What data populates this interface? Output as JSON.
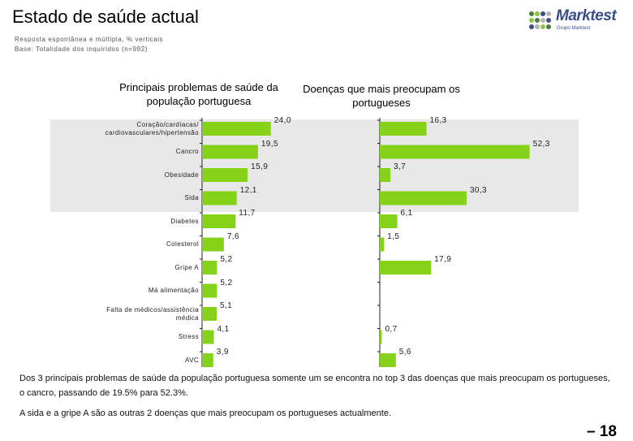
{
  "header": {
    "title": "Estado de saúde actual",
    "subtitle1": "Resposta espontânea e múltipla, % verticais",
    "subtitle2": "Base: Totalidade dos inquiridos (n=992)"
  },
  "logo": {
    "name": "Marktest",
    "tagline": "Grupo Marktest",
    "dot_colors": [
      "#4a7c3a",
      "#8ec63f",
      "#3a4e8a",
      "#b5b5b5"
    ]
  },
  "colors": {
    "bar": "#86d119",
    "highlight_band": "#e8e8e8",
    "axis": "#222222"
  },
  "chart_data": [
    {
      "type": "bar",
      "orientation": "horizontal",
      "title": "Principais problemas de saúde da população portuguesa",
      "categories": [
        "Coração/cardíacas/ cardiovasculares/hipertensão",
        "Cancro",
        "Obesidade",
        "Sida",
        "Diabetes",
        "Colesterol",
        "Gripe A",
        "Má alimentação",
        "Falta de médicos/assistência médica",
        "Stress",
        "AVC"
      ],
      "values": [
        24.0,
        19.5,
        15.9,
        12.1,
        11.7,
        7.6,
        5.2,
        5.2,
        5.1,
        4.1,
        3.9
      ],
      "labels": [
        "24,0",
        "19,5",
        "15,9",
        "12,1",
        "11,7",
        "7,6",
        "5,2",
        "5,2",
        "5,1",
        "4,1",
        "3,9"
      ],
      "xlim": [
        0,
        52.3
      ]
    },
    {
      "type": "bar",
      "orientation": "horizontal",
      "title": "Doenças que mais preocupam os portugueses",
      "categories": [
        "Coração/cardíacas/ cardiovasculares/hipertensão",
        "Cancro",
        "Obesidade",
        "Sida",
        "Diabetes",
        "Colesterol",
        "Gripe A",
        "Má alimentação",
        "Falta de médicos/assistência médica",
        "Stress",
        "AVC"
      ],
      "values": [
        16.3,
        52.3,
        3.7,
        30.3,
        6.1,
        1.5,
        17.9,
        null,
        null,
        0.7,
        5.6
      ],
      "labels": [
        "16,3",
        "52,3",
        "3,7",
        "30,3",
        "6,1",
        "1,5",
        "17,9",
        "",
        "",
        "0,7",
        "5,6"
      ],
      "xlim": [
        0,
        52.3
      ]
    }
  ],
  "body": {
    "paragraph1": "Dos 3 principais problemas de saúde da população portuguesa somente um se encontra no top 3 das doenças que mais preocupam os portugueses, o cancro, passando de 19.5% para 52.3%.",
    "paragraph2": "A sida e a gripe A são as outras 2 doenças que mais preocupam os portugueses actualmente."
  },
  "page_number": "– 18"
}
